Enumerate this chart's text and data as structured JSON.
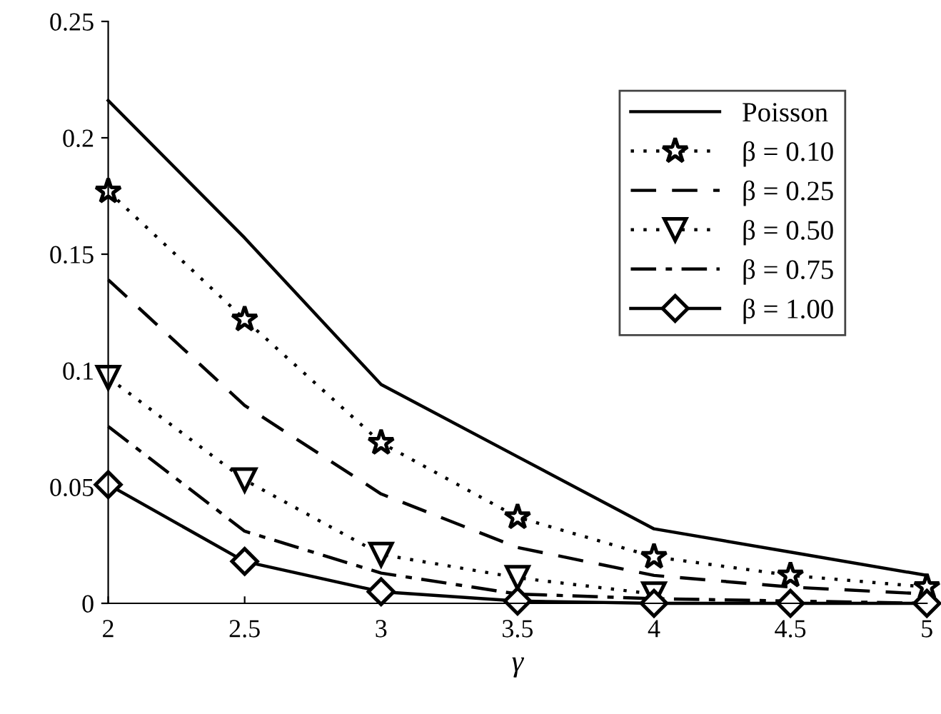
{
  "chart_data": {
    "type": "line",
    "xlabel": "γ",
    "x": [
      2,
      2.5,
      3,
      3.5,
      4,
      4.5,
      5
    ],
    "xlim": [
      2,
      5
    ],
    "xticks": [
      2,
      2.5,
      3,
      3.5,
      4,
      4.5,
      5
    ],
    "ylim": [
      0,
      0.25
    ],
    "yticks": [
      0,
      0.05,
      0.1,
      0.15,
      0.2,
      0.25
    ],
    "grid": false,
    "legend": "top right",
    "series": [
      {
        "name": "Poisson",
        "color": "#000000",
        "line_style": "solid",
        "marker": "none",
        "values": [
          0.216,
          0.157,
          0.094,
          0.063,
          0.032,
          0.022,
          0.012
        ]
      },
      {
        "name": "β = 0.10",
        "color": "#000000",
        "line_style": "dotted",
        "marker": "star",
        "values": [
          0.177,
          0.122,
          0.069,
          0.037,
          0.02,
          0.012,
          0.007
        ]
      },
      {
        "name": "β = 0.25",
        "color": "#000000",
        "line_style": "dashed",
        "marker": "none",
        "values": [
          0.139,
          0.085,
          0.047,
          0.024,
          0.012,
          0.007,
          0.004
        ]
      },
      {
        "name": "β = 0.50",
        "color": "#000000",
        "line_style": "dotted",
        "marker": "triangle",
        "values": [
          0.097,
          0.053,
          0.021,
          0.011,
          0.004,
          null,
          null
        ]
      },
      {
        "name": "β = 0.75",
        "color": "#000000",
        "line_style": "dashdot",
        "marker": "none",
        "values": [
          0.076,
          0.031,
          0.013,
          0.004,
          0.002,
          0.001,
          0
        ]
      },
      {
        "name": "β = 1.00",
        "color": "#000000",
        "line_style": "solid",
        "marker": "diamond",
        "values": [
          0.051,
          0.018,
          0.005,
          0.001,
          0,
          0,
          0
        ]
      }
    ]
  }
}
